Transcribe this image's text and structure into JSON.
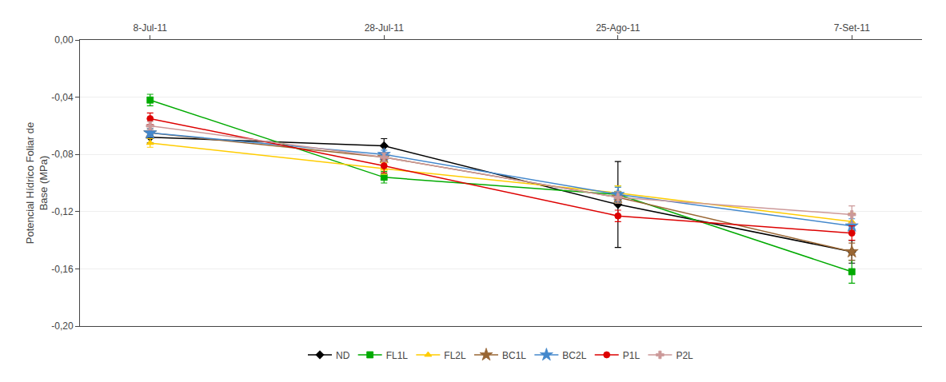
{
  "chart_data": {
    "type": "line",
    "categories": [
      "8-Jul-11",
      "28-Jul-11",
      "25-Ago-11",
      "7-Set-11"
    ],
    "series": [
      {
        "name": "ND",
        "color": "#000000",
        "marker": "diamond",
        "values": [
          -0.068,
          -0.074,
          -0.115,
          -0.148
        ],
        "yerr": [
          0.004,
          0.005,
          0.03,
          0.008
        ]
      },
      {
        "name": "FL1L",
        "color": "#00aa00",
        "marker": "square",
        "values": [
          -0.042,
          -0.096,
          -0.108,
          -0.162
        ],
        "yerr": [
          0.004,
          0.004,
          0.006,
          0.008
        ]
      },
      {
        "name": "FL2L",
        "color": "#ffcc00",
        "marker": "triangle-up",
        "values": [
          -0.072,
          -0.09,
          -0.107,
          -0.127
        ],
        "yerr": [
          0.003,
          0.004,
          0.005,
          0.006
        ]
      },
      {
        "name": "BC1L",
        "color": "#996633",
        "marker": "star",
        "values": [
          -0.065,
          -0.082,
          -0.11,
          -0.148
        ],
        "yerr": [
          0.003,
          0.003,
          0.004,
          0.006
        ]
      },
      {
        "name": "BC2L",
        "color": "#4488cc",
        "marker": "star",
        "values": [
          -0.065,
          -0.08,
          -0.108,
          -0.13
        ],
        "yerr": [
          0.003,
          0.003,
          0.005,
          0.005
        ]
      },
      {
        "name": "P1L",
        "color": "#dd0000",
        "marker": "circle",
        "values": [
          -0.055,
          -0.088,
          -0.123,
          -0.135
        ],
        "yerr": [
          0.004,
          0.005,
          0.004,
          0.005
        ]
      },
      {
        "name": "P2L",
        "color": "#cc9999",
        "marker": "cross",
        "values": [
          -0.06,
          -0.082,
          -0.11,
          -0.122
        ],
        "yerr": [
          0.003,
          0.003,
          0.004,
          0.006
        ]
      }
    ],
    "y_label": "Potencial Hídrico Foliar de\nBase (MPa)",
    "ylim": [
      -0.2,
      0.0
    ],
    "yticks": [
      {
        "value": 0.0,
        "label": "0,00"
      },
      {
        "value": -0.04,
        "label": "-0,04"
      },
      {
        "value": -0.08,
        "label": "-0,08"
      },
      {
        "value": -0.12,
        "label": "-0,12"
      },
      {
        "value": -0.16,
        "label": "-0,16"
      },
      {
        "value": -0.2,
        "label": "-0,20"
      }
    ],
    "grid": true,
    "legend": "bottom"
  }
}
